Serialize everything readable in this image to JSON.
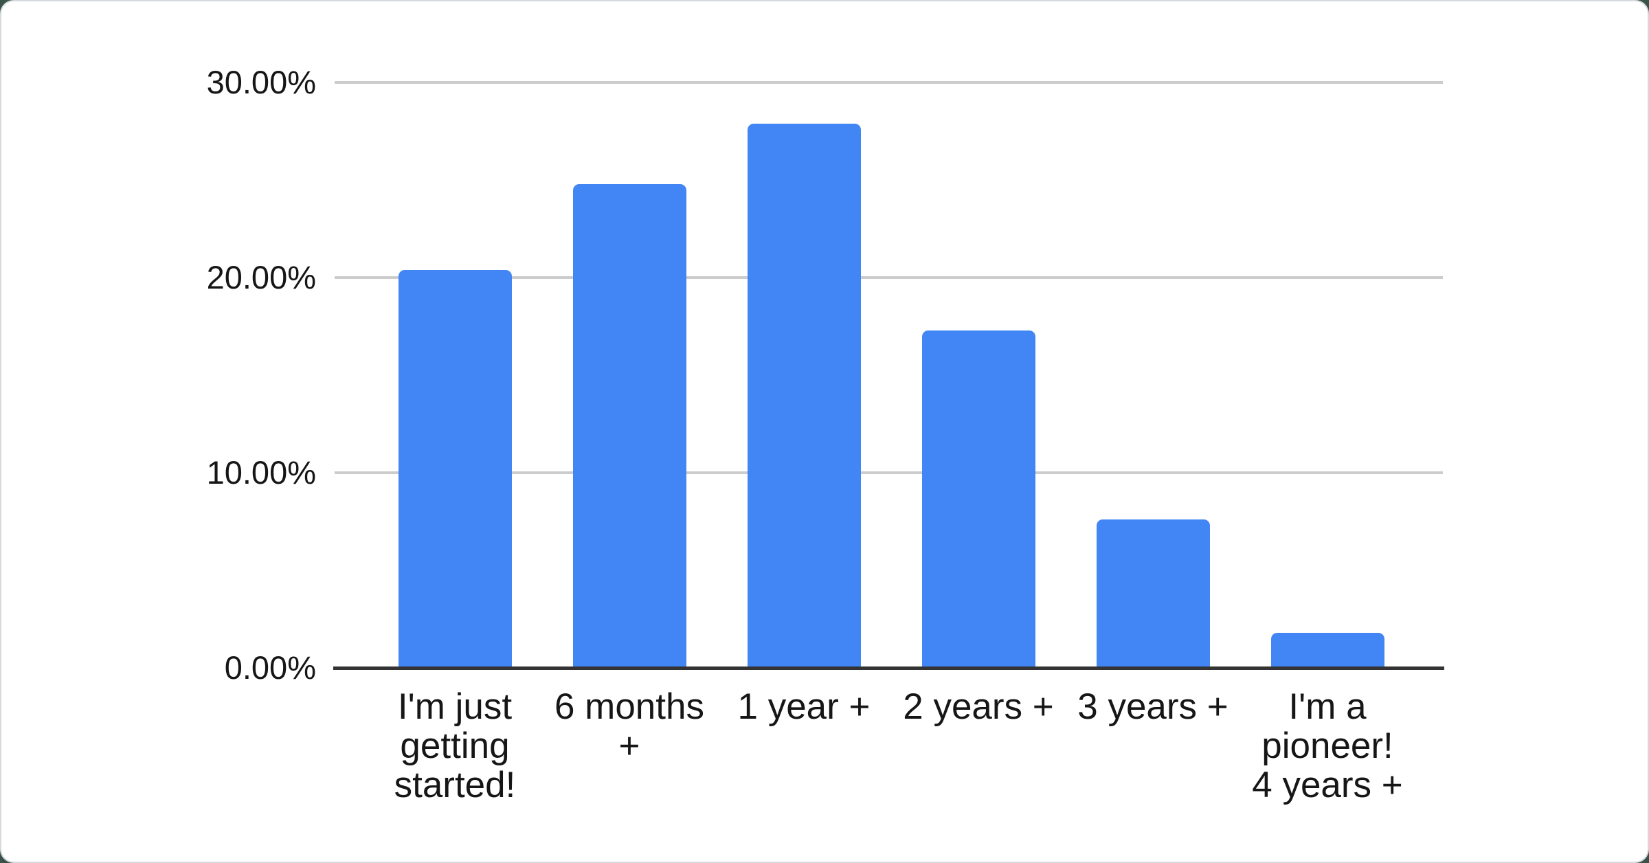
{
  "chart_data": {
    "type": "bar",
    "title": "",
    "xlabel": "",
    "ylabel": "",
    "categories": [
      "I'm just getting started!",
      "6 months +",
      "1 year +",
      "2 years +",
      "3 years +",
      "I'm a pioneer! 4 years +"
    ],
    "category_label_lines": [
      "I'm just\ngetting\nstarted!",
      "6 months\n+",
      "1 year +",
      "2 years +",
      "3 years +",
      "I'm a\npioneer!\n4 years +"
    ],
    "values": [
      20.4,
      24.8,
      27.9,
      17.3,
      7.6,
      1.8
    ],
    "ylim": [
      0,
      30
    ],
    "yticks": [
      {
        "label": "30.00%",
        "value": 30
      },
      {
        "label": "20.00%",
        "value": 20
      },
      {
        "label": "10.00%",
        "value": 10
      },
      {
        "label": "0.00%",
        "value": 0
      }
    ],
    "grid": true,
    "legend_position": "none",
    "colors": {
      "bar": "#4285f4",
      "gridline": "#cccccc",
      "axis": "#333333",
      "text": "#161616",
      "card_background": "#ffffff",
      "page_background": "#3a564a"
    }
  }
}
